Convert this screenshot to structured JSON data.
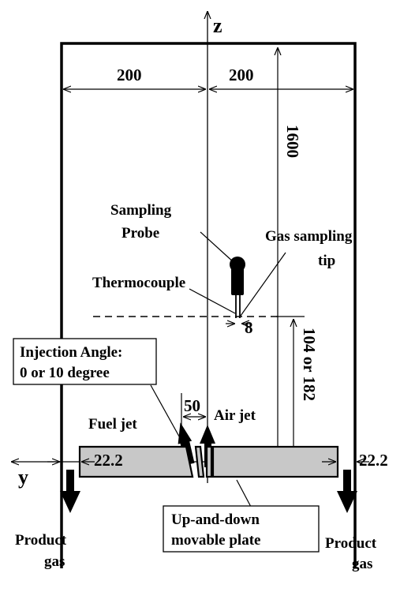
{
  "axes": {
    "z": "z",
    "y": "y"
  },
  "dimensions": {
    "half_width_left": "200",
    "half_width_right": "200",
    "height": "1600",
    "probe_offset": "8",
    "probe_height": "104 or 182",
    "jet_spacing": "50",
    "plate_gap_left": "22.2",
    "plate_gap_right": "22.2"
  },
  "labels": {
    "sampling_probe_line1": "Sampling",
    "sampling_probe_line2": "Probe",
    "gas_sampling_tip_line1": "Gas sampling",
    "gas_sampling_tip_line2": "tip",
    "thermocouple": "Thermocouple",
    "injection_angle_line1": "Injection Angle:",
    "injection_angle_line2": "0 or 10 degree",
    "fuel_jet": "Fuel jet",
    "air_jet": "Air jet",
    "plate_line1": "Up-and-down",
    "plate_line2": "movable plate",
    "product_gas_left_line1": "Product",
    "product_gas_left_line2": "gas",
    "product_gas_right_line1": "Product",
    "product_gas_right_line2": "gas"
  },
  "colors": {
    "plate_fill": "#c8c8c8",
    "ink": "#000000"
  }
}
